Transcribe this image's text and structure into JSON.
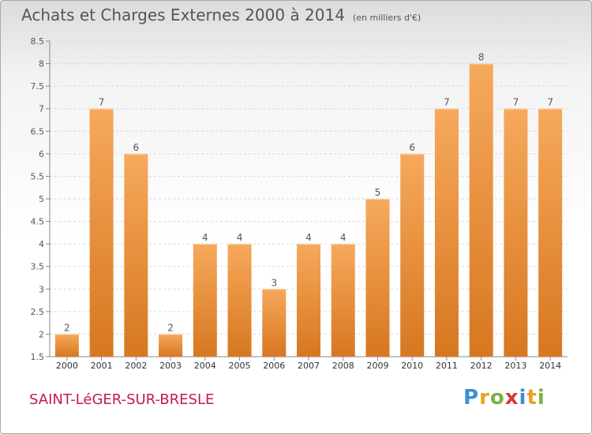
{
  "title": "Achats et Charges Externes 2000 à 2014",
  "unit_note": "(en milliers d'€)",
  "town": "SAINT-LéGER-SUR-BRESLE",
  "logo": "Proxiti",
  "colors": {
    "bar_light": "#f6a95c",
    "bar_dark": "#d77720",
    "town": "#c2185b",
    "axis_text": "#555555"
  },
  "chart_data": {
    "type": "bar",
    "title": "Achats et Charges Externes 2000 à 2014",
    "categories": [
      "2000",
      "2001",
      "2002",
      "2003",
      "2004",
      "2005",
      "2006",
      "2007",
      "2008",
      "2009",
      "2010",
      "2011",
      "2012",
      "2013",
      "2014"
    ],
    "values": [
      2,
      7,
      6,
      2,
      4,
      4,
      3,
      4,
      4,
      5,
      6,
      7,
      8,
      7,
      7
    ],
    "ylim": [
      1.5,
      8.5
    ],
    "yticks": [
      1.5,
      2,
      2.5,
      3,
      3.5,
      4,
      4.5,
      5,
      5.5,
      6,
      6.5,
      7,
      7.5,
      8,
      8.5
    ],
    "grid": true,
    "xlabel": "",
    "ylabel": ""
  }
}
